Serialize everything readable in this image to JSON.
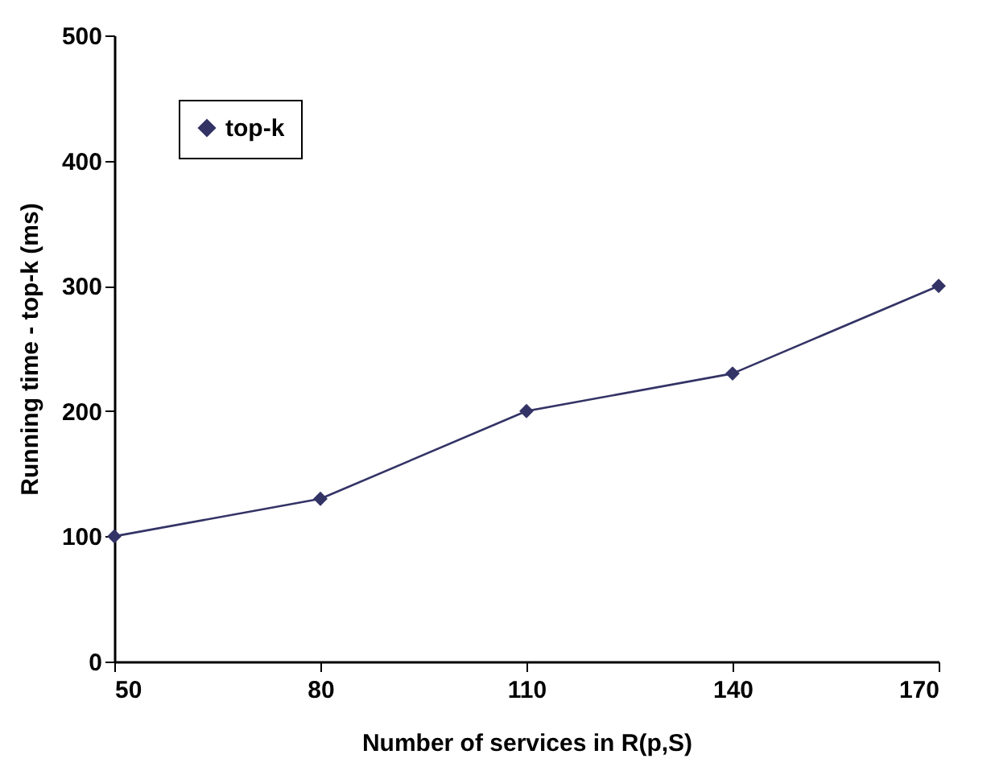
{
  "chart_data": {
    "type": "line",
    "xlabel": "Number of services in R(p,S)",
    "ylabel": "Running time - top-k (ms)",
    "x": [
      50,
      80,
      110,
      140,
      170
    ],
    "series": [
      {
        "name": "top-k",
        "color": "#333366",
        "values": [
          100,
          130,
          200,
          230,
          300
        ]
      }
    ],
    "xlim": [
      50,
      170
    ],
    "xticks": [
      50,
      80,
      110,
      140,
      170
    ],
    "ylim": [
      0,
      500
    ],
    "yticks": [
      0,
      100,
      200,
      300,
      400,
      500
    ],
    "grid": false,
    "legend": "top left",
    "marker": "diamond",
    "line_style": "solid"
  }
}
